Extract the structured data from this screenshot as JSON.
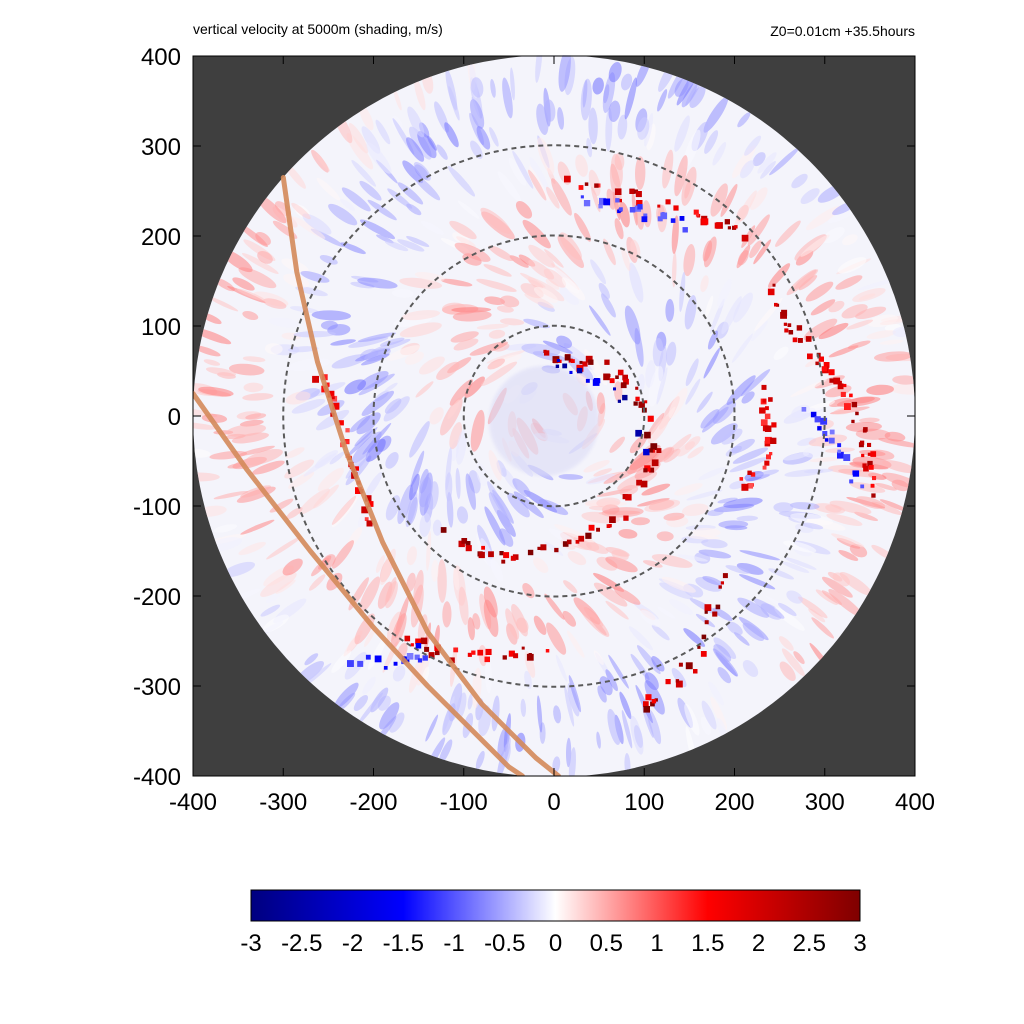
{
  "header": {
    "left_title": "vertical velocity at 5000m (shading, m/s)",
    "right_title": "Z0=0.01cm  +35.5hours"
  },
  "colors": {
    "background_mask": "#3f3f3f",
    "dashed_circles": "#5a5a5a",
    "track_lines": "#d4895a",
    "positive_strong": "#8b0000",
    "negative_strong": "#0000aa"
  },
  "chart_data": {
    "type": "heatmap",
    "title": "vertical velocity at 5000m (shading, m/s)",
    "subtitle": "Z0=0.01cm  +35.5hours",
    "xlabel": "",
    "ylabel": "",
    "xlim": [
      -400,
      400
    ],
    "ylim": [
      -400,
      400
    ],
    "x_ticks": [
      -400,
      -300,
      -200,
      -100,
      0,
      100,
      200,
      300,
      400
    ],
    "y_ticks": [
      400,
      300,
      200,
      100,
      0,
      -100,
      -200,
      -300,
      -400
    ],
    "domain_radius": 400,
    "range_circles": [
      100,
      200,
      300
    ],
    "track_lines": [
      {
        "points": [
          [
            -300,
            265
          ],
          [
            -285,
            160
          ],
          [
            -262,
            60
          ],
          [
            -230,
            -40
          ],
          [
            -190,
            -140
          ],
          [
            -140,
            -240
          ],
          [
            -80,
            -320
          ],
          [
            -20,
            -380
          ],
          [
            5,
            -400
          ]
        ]
      },
      {
        "points": [
          [
            -400,
            25
          ],
          [
            -340,
            -60
          ],
          [
            -270,
            -150
          ],
          [
            -200,
            -235
          ],
          [
            -140,
            -300
          ],
          [
            -90,
            -350
          ],
          [
            -50,
            -390
          ],
          [
            -35,
            -400
          ]
        ]
      }
    ],
    "colorbar": {
      "min": -3,
      "max": 3,
      "ticks": [
        "-3",
        "-2.5",
        "-2",
        "-1.5",
        "-1",
        "-0.5",
        "0",
        "0.5",
        "1",
        "1.5",
        "2",
        "2.5",
        "3"
      ],
      "colors": [
        "#00007f",
        "#0000ff",
        "#ffffff",
        "#ff0000",
        "#7f0000"
      ]
    },
    "updraft_bands": [
      {
        "points": [
          [
            -10,
            65
          ],
          [
            20,
            60
          ],
          [
            50,
            55
          ],
          [
            75,
            40
          ],
          [
            95,
            20
          ],
          [
            105,
            0
          ],
          [
            110,
            -20
          ],
          [
            115,
            -40
          ],
          [
            105,
            -60
          ],
          [
            90,
            -75
          ]
        ],
        "value": 3
      },
      {
        "points": [
          [
            20,
            260
          ],
          [
            60,
            250
          ],
          [
            100,
            240
          ],
          [
            140,
            230
          ],
          [
            180,
            215
          ],
          [
            210,
            200
          ]
        ],
        "value": 2.5
      },
      {
        "points": [
          [
            240,
            140
          ],
          [
            260,
            100
          ],
          [
            290,
            70
          ],
          [
            320,
            30
          ],
          [
            340,
            -10
          ],
          [
            350,
            -60
          ],
          [
            355,
            -100
          ]
        ],
        "value": 2.5
      },
      {
        "points": [
          [
            -120,
            -130
          ],
          [
            -80,
            -150
          ],
          [
            -40,
            -160
          ],
          [
            0,
            -150
          ],
          [
            40,
            -135
          ],
          [
            70,
            -110
          ],
          [
            90,
            -90
          ]
        ],
        "value": 3
      },
      {
        "points": [
          [
            -160,
            -250
          ],
          [
            -120,
            -265
          ],
          [
            -60,
            -270
          ],
          [
            -10,
            -260
          ]
        ],
        "value": 2.5
      },
      {
        "points": [
          [
            190,
            -180
          ],
          [
            170,
            -240
          ],
          [
            150,
            -280
          ],
          [
            120,
            -310
          ],
          [
            90,
            -330
          ]
        ],
        "value": 3
      },
      {
        "points": [
          [
            -260,
            50
          ],
          [
            -240,
            0
          ],
          [
            -220,
            -60
          ],
          [
            -200,
            -120
          ]
        ],
        "value": 2
      },
      {
        "points": [
          [
            230,
            30
          ],
          [
            240,
            -20
          ],
          [
            230,
            -60
          ],
          [
            200,
            -90
          ]
        ],
        "value": 2
      }
    ],
    "downdraft_bands": [
      {
        "points": [
          [
            0,
            60
          ],
          [
            40,
            40
          ],
          [
            70,
            20
          ],
          [
            90,
            -10
          ],
          [
            100,
            -50
          ]
        ],
        "value": -2.5
      },
      {
        "points": [
          [
            30,
            240
          ],
          [
            90,
            230
          ],
          [
            160,
            210
          ]
        ],
        "value": -1.5
      },
      {
        "points": [
          [
            -220,
            -270
          ],
          [
            -180,
            -280
          ],
          [
            -140,
            -260
          ]
        ],
        "value": -1.5
      },
      {
        "points": [
          [
            280,
            10
          ],
          [
            320,
            -40
          ],
          [
            345,
            -90
          ]
        ],
        "value": -1.5
      }
    ]
  }
}
